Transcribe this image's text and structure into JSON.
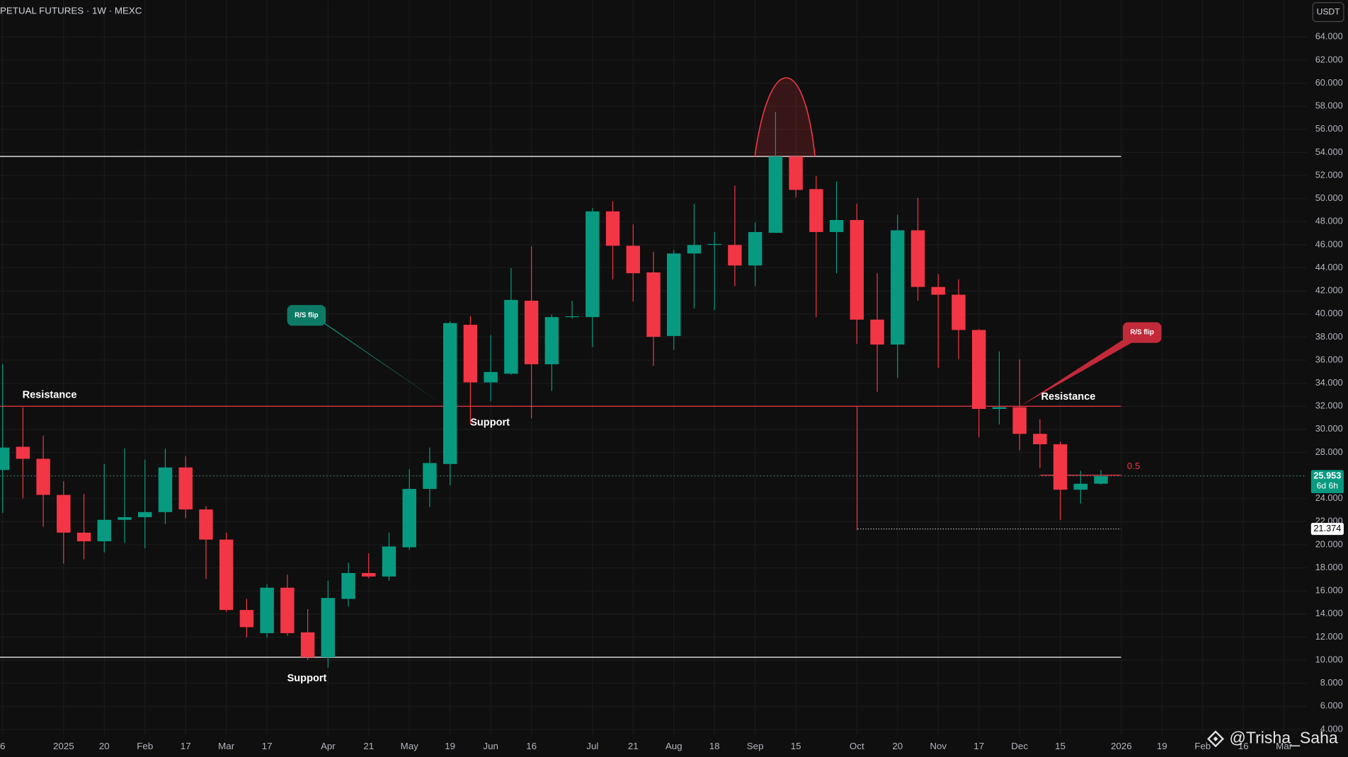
{
  "header": {
    "title": "PETUAL FUTURES · 1W · MEXC",
    "currency": "USDT"
  },
  "chart_data": {
    "type": "candlestick",
    "categories": [
      "6",
      null,
      null,
      "2025",
      null,
      "20",
      null,
      "Feb",
      null,
      "17",
      null,
      "Mar",
      null,
      "17",
      null,
      null,
      "Apr",
      null,
      "21",
      null,
      "May",
      null,
      "19",
      null,
      "Jun",
      null,
      "16",
      null,
      null,
      "Jul",
      null,
      "21",
      null,
      "Aug",
      null,
      "18",
      null,
      "Sep",
      null,
      "15",
      null,
      null,
      "Oct",
      null,
      "20",
      null,
      "Nov",
      null,
      "17",
      null,
      "Dec",
      null,
      "15",
      null,
      null,
      "2026",
      null,
      "19",
      null,
      "Feb",
      null,
      "16",
      null,
      "Mar"
    ],
    "open": [
      26.48,
      28.49,
      27.45,
      24.32,
      21.05,
      20.3,
      22.16,
      22.39,
      22.83,
      26.7,
      23.06,
      20.45,
      14.35,
      12.34,
      16.28,
      12.41,
      10.25,
      15.31,
      17.55,
      17.25,
      19.78,
      24.84,
      27.0,
      39.06,
      34.07,
      34.82,
      41.15,
      35.64,
      39.73,
      39.73,
      48.89,
      45.91,
      43.6,
      38.09,
      45.24,
      46.0,
      45.98,
      44.2,
      47.03,
      53.65,
      50.82,
      47.1,
      48.14,
      39.51,
      37.35,
      47.25,
      42.34,
      41.67,
      38.61,
      31.77,
      31.92,
      29.61,
      28.71,
      24.77,
      25.29,
      null,
      null,
      null,
      null,
      null,
      null,
      null,
      null,
      null
    ],
    "high": [
      35.64,
      31.91,
      29.46,
      25.51,
      24.4,
      27.0,
      28.34,
      27.37,
      28.34,
      27.67,
      23.35,
      21.05,
      15.31,
      16.58,
      17.4,
      14.42,
      16.88,
      18.44,
      19.26,
      21.05,
      26.55,
      28.42,
      39.36,
      39.81,
      38.17,
      43.97,
      45.84,
      39.95,
      41.15,
      49.19,
      49.78,
      47.77,
      45.39,
      45.54,
      49.56,
      47.1,
      51.12,
      47.92,
      57.52,
      53.65,
      51.94,
      51.49,
      49.56,
      43.53,
      48.59,
      50.08,
      43.45,
      43.0,
      38.69,
      36.75,
      36.08,
      30.87,
      28.94,
      26.41,
      26.48,
      null,
      null,
      null,
      null,
      null,
      null,
      null,
      null,
      null
    ],
    "low": [
      22.76,
      24.02,
      21.57,
      18.37,
      18.74,
      19.33,
      20.15,
      19.7,
      21.79,
      22.31,
      17.03,
      14.2,
      11.96,
      11.96,
      12.11,
      10.03,
      9.36,
      14.64,
      17.1,
      16.88,
      19.56,
      23.28,
      25.14,
      30.43,
      32.44,
      34.74,
      30.95,
      33.33,
      39.6,
      37.13,
      43.0,
      41.07,
      35.49,
      36.9,
      40.48,
      40.33,
      42.41,
      42.41,
      47.03,
      50.08,
      39.73,
      43.53,
      37.42,
      33.26,
      34.45,
      41.15,
      35.34,
      36.08,
      29.31,
      30.43,
      28.19,
      26.63,
      22.16,
      23.58,
      25.22,
      null,
      null,
      null,
      null,
      null,
      null,
      null,
      null,
      null
    ],
    "close": [
      28.42,
      27.45,
      24.32,
      21.05,
      20.3,
      22.16,
      22.39,
      22.83,
      26.7,
      23.06,
      20.45,
      14.35,
      12.86,
      16.28,
      12.34,
      10.25,
      15.39,
      17.55,
      17.25,
      19.85,
      24.84,
      27.08,
      39.21,
      34.07,
      34.97,
      41.22,
      35.64,
      39.73,
      39.8,
      48.89,
      45.91,
      43.53,
      38.02,
      45.24,
      45.98,
      46.06,
      44.2,
      47.1,
      53.65,
      50.75,
      47.1,
      48.14,
      39.51,
      37.35,
      47.25,
      42.34,
      41.67,
      38.61,
      31.77,
      31.92,
      29.61,
      28.71,
      24.77,
      25.29,
      25.953,
      null,
      null,
      null,
      null,
      null,
      null,
      null,
      null,
      null
    ],
    "up_color": "#089981",
    "down_color": "#f23645",
    "ylim": [
      3.55,
      67.2
    ],
    "yticks": [
      {
        "value": 4,
        "label": "4.000"
      },
      {
        "value": 6,
        "label": "6.000"
      },
      {
        "value": 8,
        "label": "8.000"
      },
      {
        "value": 10,
        "label": "10.000"
      },
      {
        "value": 12,
        "label": "12.000"
      },
      {
        "value": 14,
        "label": "14.000"
      },
      {
        "value": 16,
        "label": "16.000"
      },
      {
        "value": 18,
        "label": "18.000"
      },
      {
        "value": 20,
        "label": "20.000"
      },
      {
        "value": 22,
        "label": "22.000"
      },
      {
        "value": 24,
        "label": "24.000"
      },
      {
        "value": 26,
        "label": "26.000"
      },
      {
        "value": 28,
        "label": "28.000"
      },
      {
        "value": 30,
        "label": "30.000"
      },
      {
        "value": 32,
        "label": "32.000"
      },
      {
        "value": 34,
        "label": "34.000"
      },
      {
        "value": 36,
        "label": "36.000"
      },
      {
        "value": 38,
        "label": "38.000"
      },
      {
        "value": 40,
        "label": "40.000"
      },
      {
        "value": 42,
        "label": "42.000"
      },
      {
        "value": 44,
        "label": "44.000"
      },
      {
        "value": 46,
        "label": "46.000"
      },
      {
        "value": 48,
        "label": "48.000"
      },
      {
        "value": 50,
        "label": "50.000"
      },
      {
        "value": 52,
        "label": "52.000"
      },
      {
        "value": 54,
        "label": "54.000"
      },
      {
        "value": 56,
        "label": "56.000"
      },
      {
        "value": 58,
        "label": "58.000"
      },
      {
        "value": 60,
        "label": "60.000"
      },
      {
        "value": 62,
        "label": "62.000"
      },
      {
        "value": 64,
        "label": "64.000"
      }
    ],
    "grid": true,
    "last_price": 25.953,
    "countdown": "6d 6h",
    "marked_price": 21.374,
    "levels": [
      {
        "value": 53.65,
        "color": "#ffffff"
      },
      {
        "value": 32,
        "color": "#f23645"
      },
      {
        "value": 10.25,
        "color": "#ffffff"
      }
    ],
    "fib_label": 0.5,
    "annotations": {
      "resistance_left": "Resistance",
      "resistance_right": "Resistance",
      "support_mid": "Support",
      "support_low": "Support",
      "flip_green": "R/S flip",
      "flip_red": "R/S flip"
    }
  },
  "watermark": "@Trisha_Saha"
}
